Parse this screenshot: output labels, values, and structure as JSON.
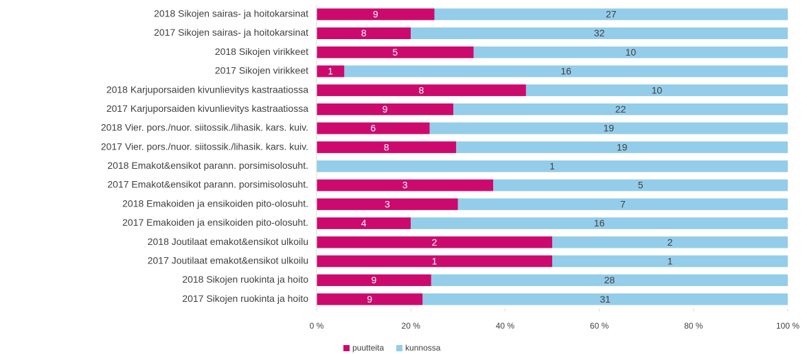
{
  "chart_data": {
    "type": "bar",
    "orientation": "horizontal",
    "stacked": "percent",
    "categories": [
      "2018 Sikojen sairas- ja hoitokarsinat",
      "2017 Sikojen sairas- ja hoitokarsinat",
      "2018 Sikojen virikkeet",
      "2017 Sikojen virikkeet",
      "2018 Karjuporsaiden kivunlievitys kastraatiossa",
      "2017 Karjuporsaiden kivunlievitys kastraatiossa",
      "2018 Vier. pors./nuor. siitossik./lihasik. kars. kuiv.",
      "2017 Vier. pors./nuor. siitossik./lihasik. kars. kuiv.",
      "2018 Emakot&ensikot parann. porsimisolosuht.",
      "2017 Emakot&ensikot parann. porsimisolosuht.",
      "2018 Emakoiden ja ensikoiden pito-olosuht.",
      "2017 Emakoiden ja ensikoiden pito-olosuht.",
      "2018 Joutilaat emakot&ensikot ulkoilu",
      "2017 Joutilaat emakot&ensikot ulkoilu",
      "2018 Sikojen ruokinta ja hoito",
      "2017 Sikojen ruokinta ja hoito"
    ],
    "series": [
      {
        "name": "puutteita",
        "color": "#cc0a6e",
        "values": [
          9,
          8,
          5,
          1,
          8,
          9,
          6,
          8,
          0,
          3,
          3,
          4,
          2,
          1,
          9,
          9
        ]
      },
      {
        "name": "kunnossa",
        "color": "#93cdea",
        "values": [
          27,
          32,
          10,
          16,
          10,
          22,
          19,
          19,
          1,
          5,
          7,
          16,
          2,
          1,
          28,
          31
        ]
      }
    ],
    "xlim": [
      0,
      100
    ],
    "xticks": [
      {
        "value": 0,
        "label": "0 %"
      },
      {
        "value": 20,
        "label": "20 %"
      },
      {
        "value": 40,
        "label": "40 %"
      },
      {
        "value": 60,
        "label": "60 %"
      },
      {
        "value": 80,
        "label": "80 %"
      },
      {
        "value": 100,
        "label": "100 %"
      }
    ],
    "legend": "bottom"
  }
}
